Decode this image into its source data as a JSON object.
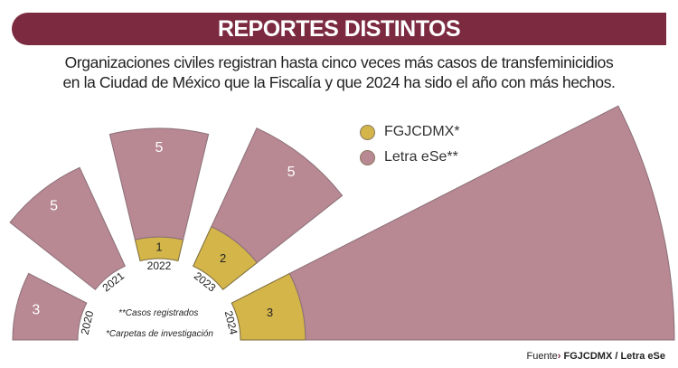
{
  "header": {
    "title": "REPORTES DISTINTOS",
    "subtitle_line1": "Organizaciones civiles registran hasta cinco veces más casos de transfeminicidios",
    "subtitle_line2": "en la Ciudad de México que la Fiscalía y que 2024 ha sido el año con más hechos."
  },
  "legend": [
    {
      "label": "FGJCDMX*",
      "color": "#d4b54a"
    },
    {
      "label": "Letra eSe**",
      "color": "#b88893"
    }
  ],
  "notes": {
    "casos": "**Casos registrados",
    "carpetas": "*Carpetas de investigación"
  },
  "source": {
    "prefix": "Fuente",
    "text": "FGJCDMX / Letra eSe"
  },
  "colors": {
    "banner": "#7b2a3f",
    "fgjcdmx": "#d4b54a",
    "letra_ese": "#b88893"
  },
  "chart_data": {
    "type": "radial-bar",
    "title": "REPORTES DISTINTOS",
    "categories": [
      "2020",
      "2021",
      "2022",
      "2023",
      "2024"
    ],
    "series": [
      {
        "name": "FGJCDMX*",
        "values": [
          0,
          0,
          1,
          2,
          3
        ]
      },
      {
        "name": "Letra eSe**",
        "values": [
          3,
          5,
          5,
          5,
          17
        ]
      }
    ],
    "stacked": true,
    "legend_position": "top-center"
  }
}
